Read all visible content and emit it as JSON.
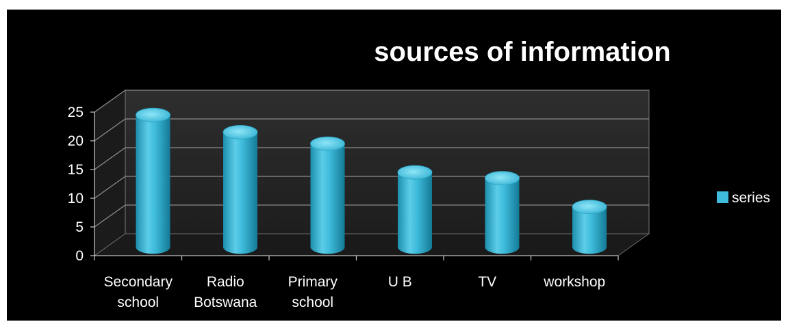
{
  "chart_data": {
    "type": "bar",
    "title": "sources of information",
    "xlabel": "",
    "ylabel": "",
    "categories": [
      [
        "Secondary",
        "school"
      ],
      [
        "Radio",
        "Botswana"
      ],
      [
        "Primary",
        "school"
      ],
      [
        "U B"
      ],
      [
        "TV"
      ],
      [
        "workshop"
      ]
    ],
    "series": [
      {
        "name": "series",
        "values": [
          23,
          20,
          18,
          13,
          12,
          7
        ]
      }
    ],
    "yticks": [
      "0",
      "5",
      "10",
      "15",
      "20",
      "25"
    ],
    "ylim": [
      0,
      25
    ],
    "grid": true,
    "legend_position": "right",
    "colors": {
      "background": "#000000",
      "bar": "#3fbcdc",
      "bar_dark": "#1a8aa8",
      "bar_light": "#7fe0f5",
      "wall": "#262626",
      "floor": "#1a1a1a",
      "gridline": "#8c8c8c",
      "text": "#ffffff"
    }
  }
}
